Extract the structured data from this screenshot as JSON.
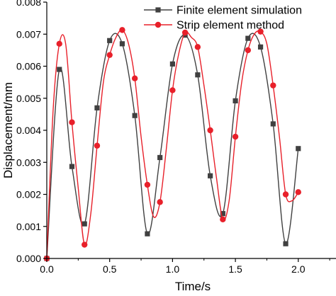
{
  "chart_data": {
    "type": "line",
    "title": "",
    "xlabel": "Time/s",
    "ylabel": "Displacement/mm",
    "xlim": [
      0,
      2.3
    ],
    "ylim": [
      0,
      0.008
    ],
    "x_ticks": [
      "0.0",
      "0.5",
      "1.0",
      "1.5",
      "2.0"
    ],
    "x_tick_values": [
      0,
      0.5,
      1.0,
      1.5,
      2.0
    ],
    "y_ticks": [
      "0.000",
      "0.001",
      "0.002",
      "0.003",
      "0.004",
      "0.005",
      "0.006",
      "0.007",
      "0.008"
    ],
    "y_tick_values": [
      0,
      0.001,
      0.002,
      0.003,
      0.004,
      0.005,
      0.006,
      0.007,
      0.008
    ],
    "grid": false,
    "legend_position": "top-right",
    "series": [
      {
        "name": "Finite element simulation",
        "color": "#404040",
        "marker": "square",
        "x": [
          0,
          0.1,
          0.2,
          0.3,
          0.4,
          0.5,
          0.6,
          0.7,
          0.8,
          0.9,
          1.0,
          1.1,
          1.2,
          1.3,
          1.4,
          1.5,
          1.6,
          1.7,
          1.8,
          1.9,
          2.0
        ],
        "y": [
          0.0,
          0.0059,
          0.00287,
          0.00108,
          0.0047,
          0.0068,
          0.0067,
          0.00446,
          0.00077,
          0.00315,
          0.00607,
          0.00697,
          0.00573,
          0.00258,
          0.0014,
          0.00492,
          0.00687,
          0.0066,
          0.0042,
          0.00046,
          0.00343
        ]
      },
      {
        "name": "Strip element method",
        "color": "#e8202a",
        "marker": "circle",
        "x": [
          0,
          0.05,
          0.1,
          0.15,
          0.2,
          0.25,
          0.3,
          0.35,
          0.4,
          0.45,
          0.5,
          0.55,
          0.6,
          0.65,
          0.7,
          0.75,
          0.8,
          0.85,
          0.9,
          0.95,
          1.0,
          1.05,
          1.1,
          1.15,
          1.2,
          1.25,
          1.3,
          1.35,
          1.4,
          1.45,
          1.5,
          1.55,
          1.6,
          1.65,
          1.7,
          1.75,
          1.8,
          1.85,
          1.9,
          1.95,
          2.0
        ],
        "y": [
          0.0,
          0.0046,
          0.0067,
          0.0067,
          0.00425,
          0.0022,
          0.00043,
          0.0014,
          0.00352,
          0.0055,
          0.00635,
          0.0069,
          0.00713,
          0.0067,
          0.00562,
          0.0038,
          0.0023,
          0.0013,
          0.00176,
          0.0034,
          0.00525,
          0.0064,
          0.00705,
          0.0069,
          0.0066,
          0.0054,
          0.004,
          0.0025,
          0.00122,
          0.0018,
          0.0038,
          0.0055,
          0.0065,
          0.007,
          0.00708,
          0.0067,
          0.0054,
          0.0038,
          0.002,
          0.0018,
          0.00207
        ]
      }
    ],
    "series_markers": {
      "Finite element simulation": [
        0,
        0.1,
        0.2,
        0.3,
        0.4,
        0.5,
        0.6,
        0.7,
        0.8,
        0.9,
        1.0,
        1.1,
        1.2,
        1.3,
        1.4,
        1.5,
        1.6,
        1.7,
        1.8,
        1.9,
        2.0
      ],
      "Strip element method": [
        0,
        0.1,
        0.2,
        0.3,
        0.4,
        0.5,
        0.6,
        0.7,
        0.8,
        0.9,
        1.0,
        1.1,
        1.2,
        1.3,
        1.4,
        1.5,
        1.6,
        1.7,
        1.8,
        1.9,
        2.0
      ]
    }
  }
}
